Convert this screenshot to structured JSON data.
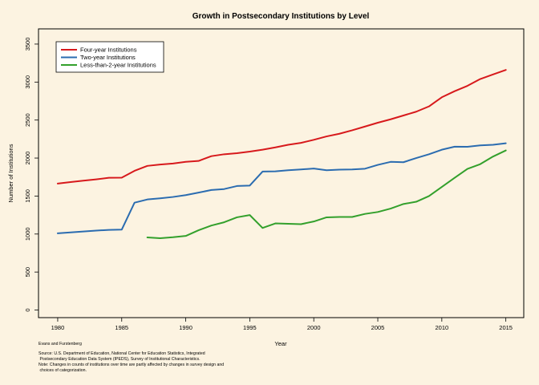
{
  "chart_data": {
    "type": "line",
    "title": "Growth in Postsecondary Institutions by Level",
    "xlabel": "Year",
    "ylabel": "Number of Institutions",
    "xlim": [
      1978.5,
      2016.4
    ],
    "ylim": [
      -100,
      3700
    ],
    "xticks": [
      1980,
      1985,
      1990,
      1995,
      2000,
      2005,
      2010,
      2015
    ],
    "yticks": [
      0,
      500,
      1000,
      1500,
      2000,
      2500,
      3000,
      3500
    ],
    "grid": false,
    "legend_position": "top-left",
    "series": [
      {
        "name": "Four-year Institutions",
        "color": "#d7191c",
        "x": [
          1980,
          1981,
          1982,
          1983,
          1984,
          1985,
          1986,
          1987,
          1988,
          1989,
          1990,
          1991,
          1992,
          1993,
          1994,
          1995,
          1996,
          1997,
          1998,
          1999,
          2000,
          2001,
          2002,
          2003,
          2004,
          2005,
          2006,
          2007,
          2008,
          2009,
          2010,
          2011,
          2012,
          2013,
          2014,
          2015
        ],
        "y": [
          1664,
          1684,
          1702,
          1720,
          1740,
          1742,
          1832,
          1897,
          1915,
          1928,
          1950,
          1962,
          2025,
          2050,
          2064,
          2085,
          2110,
          2140,
          2175,
          2200,
          2240,
          2285,
          2320,
          2365,
          2415,
          2465,
          2510,
          2560,
          2610,
          2680,
          2800,
          2880,
          2950,
          3040,
          3100,
          3160
        ]
      },
      {
        "name": "Two-year Institutions",
        "color": "#2b6cb0",
        "x": [
          1980,
          1981,
          1982,
          1983,
          1984,
          1985,
          1986,
          1987,
          1988,
          1989,
          1990,
          1991,
          1992,
          1993,
          1994,
          1995,
          1996,
          1997,
          1998,
          1999,
          2000,
          2001,
          2002,
          2003,
          2004,
          2005,
          2006,
          2007,
          2008,
          2009,
          2010,
          2011,
          2012,
          2013,
          2014,
          2015
        ],
        "y": [
          1010,
          1022,
          1034,
          1045,
          1055,
          1058,
          1413,
          1455,
          1470,
          1488,
          1512,
          1545,
          1580,
          1592,
          1632,
          1638,
          1822,
          1825,
          1840,
          1850,
          1862,
          1840,
          1848,
          1850,
          1860,
          1910,
          1950,
          1945,
          2000,
          2050,
          2110,
          2150,
          2148,
          2167,
          2175,
          2195
        ]
      },
      {
        "name": "Less-than-2-year Institutions",
        "color": "#33a02c",
        "x": [
          1987,
          1988,
          1989,
          1990,
          1991,
          1992,
          1993,
          1994,
          1995,
          1996,
          1997,
          1998,
          1999,
          2000,
          2001,
          2002,
          2003,
          2004,
          2005,
          2006,
          2007,
          2008,
          2009,
          2010,
          2011,
          2012,
          2013,
          2014,
          2015
        ],
        "y": [
          955,
          945,
          958,
          975,
          1050,
          1112,
          1155,
          1220,
          1250,
          1080,
          1140,
          1135,
          1130,
          1165,
          1220,
          1225,
          1225,
          1265,
          1290,
          1335,
          1395,
          1425,
          1500,
          1620,
          1740,
          1858,
          1920,
          2020,
          2100
        ]
      }
    ]
  },
  "caption": {
    "author": "Evans and Furstenberg",
    "source_lines": [
      "Source: U.S. Department of Education, National Center for Education Statistics, Integrated",
      " Postsecondary Education Data System (IPEDS), Survey of Institutional Characteristics.",
      "Note: Changes in counts of institutions over time are partly affected by changes in survey design and",
      " choices of categorization."
    ]
  }
}
